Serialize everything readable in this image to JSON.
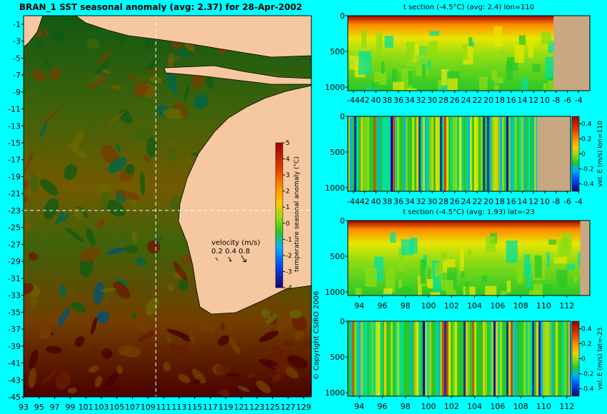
{
  "colors": {
    "background": "#00ffff",
    "land": "#f5c8a0",
    "land_section": "#c8a882",
    "colormap": [
      "#1a0066",
      "#0000c8",
      "#0050ff",
      "#00b4ff",
      "#00e0a0",
      "#28c828",
      "#8cdc14",
      "#e6e600",
      "#ffc800",
      "#ff8c00",
      "#e63c00",
      "#a00000"
    ]
  },
  "chart_data": [
    {
      "id": "map",
      "type": "heatmap",
      "title": "BRAN_1  SST seasonal anomaly (avg: 2.37) for 28-Apr-2002",
      "x_ticks": [
        "93",
        "95",
        "97",
        "99",
        "101",
        "103",
        "105",
        "107",
        "109",
        "111",
        "113",
        "115",
        "117",
        "119",
        "121",
        "123",
        "125",
        "127",
        "129"
      ],
      "y_ticks": [
        "-1",
        "-3",
        "-5",
        "-7",
        "-9",
        "-11",
        "-13",
        "-15",
        "-17",
        "-19",
        "-21",
        "-23",
        "-25",
        "-27",
        "-29",
        "-31",
        "-33",
        "-35",
        "-37",
        "-39",
        "-41",
        "-43",
        "-45"
      ],
      "xlim": [
        93,
        130
      ],
      "ylim": [
        -45,
        0
      ],
      "crosshair": {
        "lon": 110,
        "lat": -23
      },
      "colorbar": {
        "label": "temperature seasonal anomaly (°C)",
        "ticks": [
          "5",
          "4",
          "3",
          "2",
          "1",
          "0",
          "-1",
          "-2",
          "-3",
          "-4"
        ],
        "range": [
          -4,
          5
        ]
      },
      "velocity_legend": {
        "title": "velocity (m/s)",
        "ticks": "0.2 0.4 0.8"
      },
      "copyright": "© Copyright CSIRO 2006"
    },
    {
      "id": "section-t-lon",
      "type": "heatmap",
      "title": "t section (-4.5°C) (avg: 2.4) lon=110",
      "x_ticks": [
        "-44",
        "42",
        "40",
        "38",
        "36",
        "34",
        "32",
        "30",
        "28",
        "26",
        "24",
        "22",
        "20",
        "18",
        "16",
        "14",
        "12",
        "10",
        "-8",
        "-6",
        "-4"
      ],
      "y_ticks": [
        "0",
        "500",
        "1000"
      ],
      "xlim": [
        -45,
        -2
      ],
      "ylim": [
        1050,
        0
      ]
    },
    {
      "id": "section-v-lon",
      "type": "heatmap",
      "x_ticks": [
        "-44",
        "42",
        "40",
        "38",
        "36",
        "34",
        "32",
        "30",
        "28",
        "26",
        "24",
        "22",
        "20",
        "18",
        "16",
        "14",
        "12",
        "10",
        "-8",
        "-6",
        "-4"
      ],
      "y_ticks": [
        "0",
        "500",
        "1000"
      ],
      "xlim": [
        -45,
        -2
      ],
      "ylim": [
        1050,
        0
      ],
      "colorbar": {
        "label": "vel. E (m/s) lon=110",
        "ticks": [
          "0.4",
          "0.2",
          "0",
          "-0.2",
          "-0.4"
        ],
        "range": [
          -0.5,
          0.5
        ]
      }
    },
    {
      "id": "section-t-lat",
      "type": "heatmap",
      "title": "t section (-4.5°C) (avg: 1.93) lat=-23",
      "x_ticks": [
        "94",
        "96",
        "98",
        "100",
        "102",
        "104",
        "106",
        "108",
        "110",
        "112"
      ],
      "y_ticks": [
        "0",
        "500",
        "1000"
      ],
      "xlim": [
        93,
        114
      ],
      "ylim": [
        1050,
        0
      ]
    },
    {
      "id": "section-v-lat",
      "type": "heatmap",
      "x_ticks": [
        "94",
        "96",
        "98",
        "100",
        "102",
        "104",
        "106",
        "108",
        "110",
        "112"
      ],
      "y_ticks": [
        "0",
        "500",
        "1000"
      ],
      "xlim": [
        93,
        114
      ],
      "ylim": [
        1050,
        0
      ],
      "colorbar": {
        "label": "vel. E (m/s) lat=-23",
        "ticks": [
          "0.4",
          "0.2",
          "0",
          "-0.2",
          "-0.4"
        ],
        "range": [
          -0.5,
          0.5
        ]
      }
    }
  ]
}
